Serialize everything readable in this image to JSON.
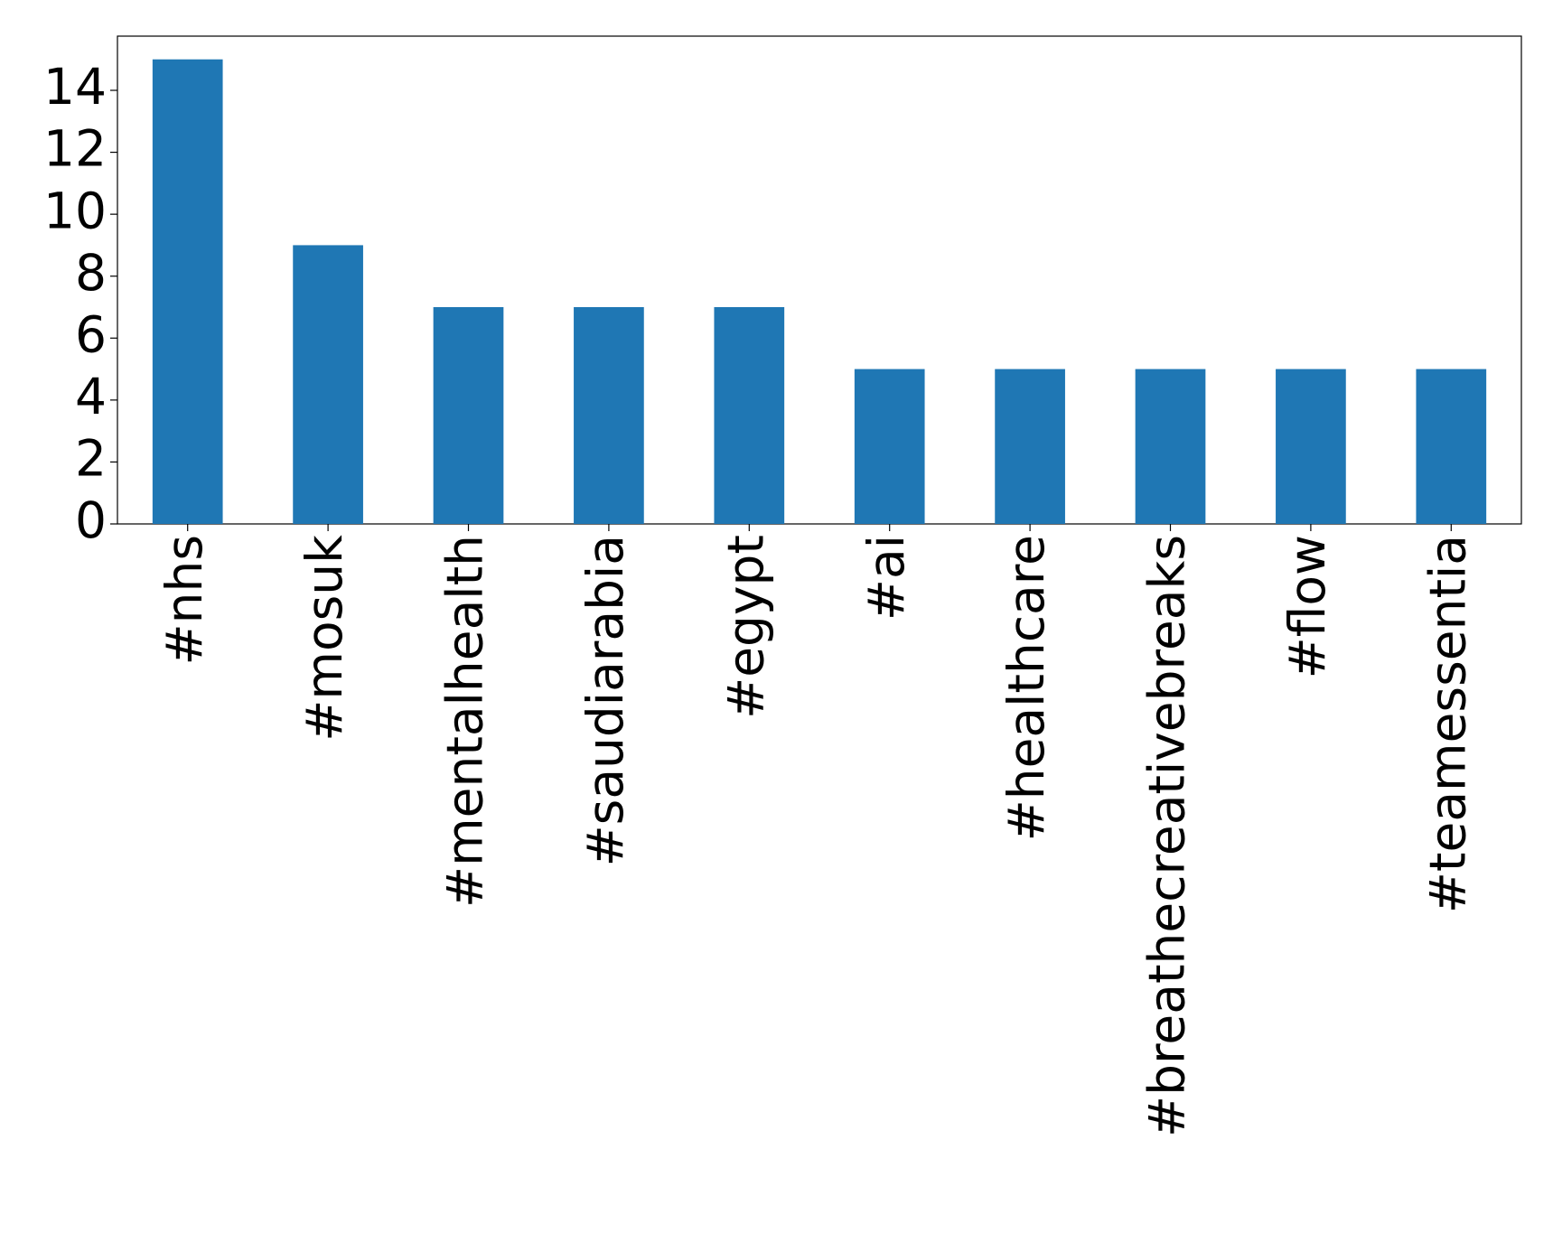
{
  "chart_data": {
    "type": "bar",
    "categories": [
      "#nhs",
      "#mosuk",
      "#mentalhealth",
      "#saudiarabia",
      "#egypt",
      "#ai",
      "#healthcare",
      "#breathecreativebreaks",
      "#flow",
      "#teamessentia"
    ],
    "values": [
      15,
      9,
      7,
      7,
      7,
      5,
      5,
      5,
      5,
      5
    ],
    "color": "#1f77b4",
    "ylim": [
      0,
      15.75
    ],
    "yticks": [
      0,
      2,
      4,
      6,
      8,
      10,
      12,
      14
    ],
    "grid": false
  }
}
